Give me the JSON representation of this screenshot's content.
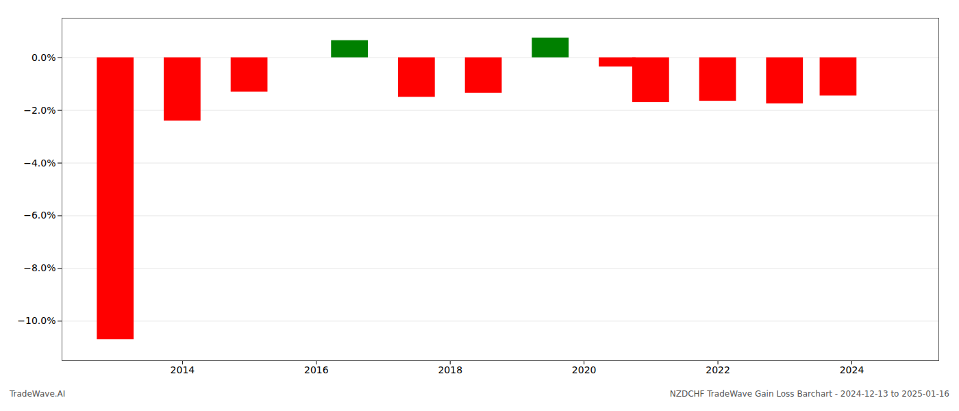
{
  "chart_data": {
    "type": "bar",
    "x": [
      2013,
      2014,
      2015,
      2016.5,
      2017.5,
      2018.5,
      2019.5,
      2020.5,
      2021,
      2022,
      2023,
      2023.8
    ],
    "values": [
      -10.7,
      -2.4,
      -1.3,
      0.65,
      -1.5,
      -1.35,
      0.75,
      -0.35,
      -1.7,
      -1.65,
      -1.75,
      -1.45
    ],
    "colors": [
      "#ff0000",
      "#ff0000",
      "#ff0000",
      "#008000",
      "#ff0000",
      "#ff0000",
      "#008000",
      "#ff0000",
      "#ff0000",
      "#ff0000",
      "#ff0000",
      "#ff0000"
    ],
    "xlim": [
      2012.2,
      2025.3
    ],
    "xticks": [
      2014,
      2016,
      2018,
      2020,
      2022,
      2024
    ],
    "ylim": [
      -11.5,
      1.5
    ],
    "yticks": [
      {
        "value": 0.0,
        "label": "0.0%"
      },
      {
        "value": -2.0,
        "label": "−2.0%"
      },
      {
        "value": -4.0,
        "label": "−4.0%"
      },
      {
        "value": -6.0,
        "label": "−6.0%"
      },
      {
        "value": -8.0,
        "label": "−8.0%"
      },
      {
        "value": -10.0,
        "label": "−10.0%"
      }
    ],
    "grid": true,
    "annotations": [
      "TradeWave.AI",
      "NZDCHF TradeWave Gain Loss Barchart - 2024-12-13 to 2025-01-16"
    ]
  }
}
